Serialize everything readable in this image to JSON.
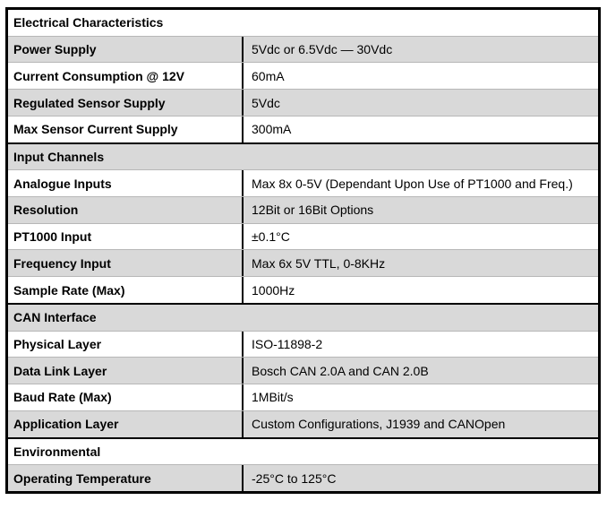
{
  "page": {
    "background": "#ffffff"
  },
  "table": {
    "colors": {
      "border": "#000000",
      "separator": "#b7b7b7",
      "row_white": "#ffffff",
      "row_stripe": "#d9d9d9",
      "text": "#000000"
    },
    "rows": [
      {
        "type": "section",
        "label": "Electrical Characteristics"
      },
      {
        "type": "data",
        "label": "Power Supply",
        "value": "5Vdc or 6.5Vdc — 30Vdc"
      },
      {
        "type": "data",
        "label": "Current Consumption @ 12V",
        "value": "60mA"
      },
      {
        "type": "data",
        "label": "Regulated Sensor Supply",
        "value": "5Vdc"
      },
      {
        "type": "data",
        "label": "Max Sensor Current Supply",
        "value": "300mA"
      },
      {
        "type": "section",
        "label": "Input Channels"
      },
      {
        "type": "data",
        "label": "Analogue Inputs",
        "value": "Max 8x 0-5V (Dependant Upon Use of PT1000 and Freq.)"
      },
      {
        "type": "data",
        "label": "Resolution",
        "value": "12Bit or 16Bit Options"
      },
      {
        "type": "data",
        "label": "PT1000 Input",
        "value": "±0.1°C"
      },
      {
        "type": "data",
        "label": "Frequency Input",
        "value": "Max 6x 5V TTL, 0-8KHz"
      },
      {
        "type": "data",
        "label": "Sample Rate (Max)",
        "value": "1000Hz"
      },
      {
        "type": "section",
        "label": "CAN Interface"
      },
      {
        "type": "data",
        "label": "Physical Layer",
        "value": "ISO-11898-2"
      },
      {
        "type": "data",
        "label": "Data Link Layer",
        "value": "Bosch CAN 2.0A and CAN 2.0B"
      },
      {
        "type": "data",
        "label": "Baud Rate (Max)",
        "value": "1MBit/s"
      },
      {
        "type": "data",
        "label": "Application Layer",
        "value": "Custom Configurations, J1939 and CANOpen"
      },
      {
        "type": "section",
        "label": "Environmental"
      },
      {
        "type": "data",
        "label": "Operating Temperature",
        "value": "-25°C to 125°C"
      }
    ]
  }
}
